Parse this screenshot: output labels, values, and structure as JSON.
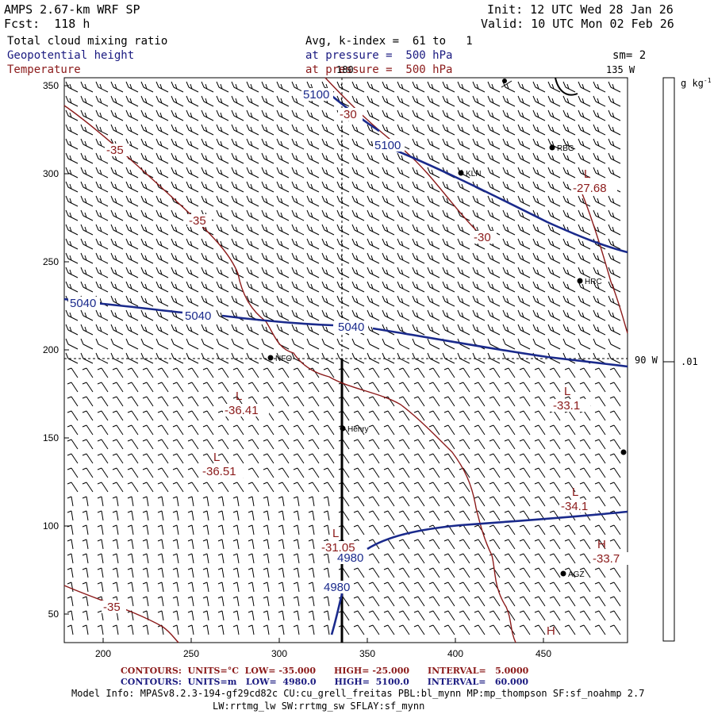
{
  "header": {
    "model": "AMPS 2.67-km WRF SP",
    "forecast": "Fcst:  118 h",
    "init": "Init: 12 UTC Wed 28 Jan 26",
    "valid": "Valid: 10 UTC Mon 02 Feb 26",
    "field1": "Total cloud mixing ratio",
    "field2": "Geopotential height",
    "field3": "Temperature",
    "avg": "Avg, k-index =  61 to   1",
    "pressure1": "at pressure =  500 hPa",
    "pressure2": "at pressure =  500 hPa",
    "smoothing": "sm= 2"
  },
  "plot": {
    "x_ticks": [
      "200",
      "250",
      "300",
      "350",
      "400",
      "450"
    ],
    "y_ticks": [
      "350",
      "300",
      "250",
      "200",
      "150",
      "100",
      "50"
    ],
    "lon_top_180": "180",
    "lon_top_135": "135 W",
    "lon_right_90": "90 W",
    "colorbar_unit": "g kg",
    "colorbar_unit_sup": "-1",
    "colorbar_tick": ".01",
    "stations": [
      "KLN",
      "RBG",
      "HRC",
      "NFO",
      "Henry",
      "AGZ"
    ],
    "height_labels": [
      "5100",
      "5100",
      "5040",
      "5040",
      "5040",
      "4980",
      "4980"
    ],
    "temp_labels": [
      "-35",
      "-35",
      "-30",
      "-30",
      "-35"
    ],
    "lows": [
      {
        "mark": "L",
        "value": "-27.68"
      },
      {
        "mark": "L",
        "value": "-36.41"
      },
      {
        "mark": "L",
        "value": "-36.51"
      },
      {
        "mark": "L",
        "value": "-33.1"
      },
      {
        "mark": "L",
        "value": "-34.1"
      },
      {
        "mark": "L",
        "value": "-31.05"
      }
    ],
    "highs": [
      {
        "mark": "H",
        "value": "-33.7"
      },
      {
        "mark": "H",
        "value": ""
      }
    ],
    "colors": {
      "height": "#1a2a8c",
      "temperature": "#8b1a1a",
      "barbs": "#000000"
    }
  },
  "footer": {
    "temp_contours": "CONTOURS:  UNITS=°C  LOW= -35.000      HIGH= -25.000      INTERVAL=   5.0000",
    "height_contours": "CONTOURS:  UNITS=m   LOW=  4980.0      HIGH=  5100.0      INTERVAL=   60.000",
    "model_info1": "Model Info: MPASv8.2.3-194-gf29cd82c CU:cu_grell_freitas PBL:bl_mynn MP:mp_thompson SF:sf_noahmp 2.7",
    "model_info2": "LW:rrtmg_lw SW:rrtmg_sw SFLAY:sf_mynn"
  }
}
